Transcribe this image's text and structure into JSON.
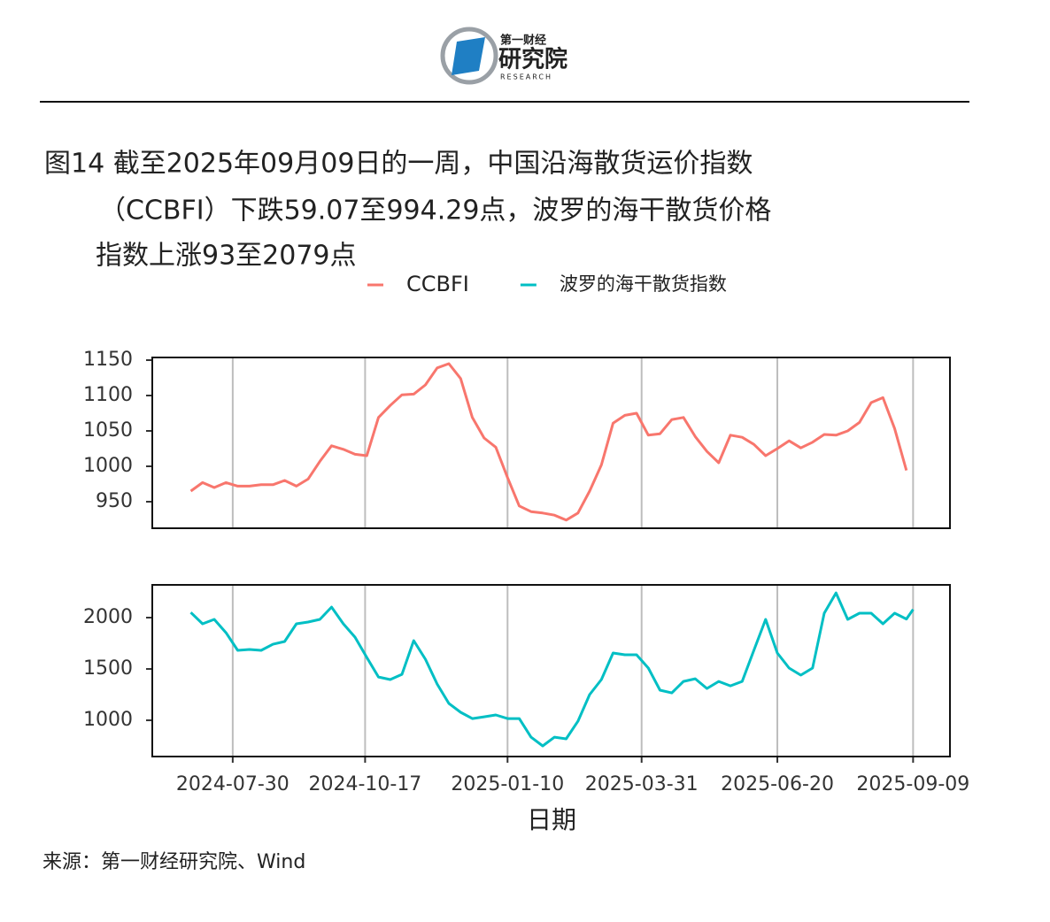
{
  "header": {
    "logo_top": "第一财经",
    "logo_main": "研究院",
    "logo_sub": "RESEARCH"
  },
  "title_lines": [
    "图14  截至2025年09月09日的一周，中国沿海散货运价指数",
    "（CCBFI）下跌59.07至994.29点，波罗的海干散货价格",
    "指数上涨93至2079点"
  ],
  "x_label": "日期",
  "source": "来源：第一财经研究院、Wind",
  "chart_data": [
    {
      "type": "line",
      "x": [
        "2024-07-05",
        "2024-07-12",
        "2024-07-19",
        "2024-07-26",
        "2024-08-02",
        "2024-08-09",
        "2024-08-16",
        "2024-08-23",
        "2024-08-30",
        "2024-09-06",
        "2024-09-13",
        "2024-09-20",
        "2024-09-27",
        "2024-10-04",
        "2024-10-11",
        "2024-10-18",
        "2024-10-25",
        "2024-11-01",
        "2024-11-08",
        "2024-11-15",
        "2024-11-22",
        "2024-11-29",
        "2024-12-06",
        "2024-12-13",
        "2024-12-20",
        "2024-12-27",
        "2025-01-03",
        "2025-01-10",
        "2025-01-17",
        "2025-01-24",
        "2025-01-31",
        "2025-02-07",
        "2025-02-14",
        "2025-02-21",
        "2025-02-28",
        "2025-03-07",
        "2025-03-14",
        "2025-03-21",
        "2025-03-28",
        "2025-04-04",
        "2025-04-11",
        "2025-04-18",
        "2025-04-25",
        "2025-05-02",
        "2025-05-09",
        "2025-05-16",
        "2025-05-23",
        "2025-05-30",
        "2025-06-06",
        "2025-06-13",
        "2025-06-20",
        "2025-06-27",
        "2025-07-04",
        "2025-07-11",
        "2025-07-18",
        "2025-07-25",
        "2025-08-01",
        "2025-08-08",
        "2025-08-15",
        "2025-08-22",
        "2025-08-29",
        "2025-09-05"
      ],
      "series": [
        {
          "name": "CCBFI",
          "color": "#F8766D",
          "values": [
            965,
            977,
            970,
            977,
            972,
            972,
            974,
            974,
            980,
            972,
            982,
            1007,
            1029,
            1024,
            1017,
            1015,
            1069,
            1086,
            1101,
            1102,
            1115,
            1139,
            1145,
            1124,
            1069,
            1040,
            1027,
            984,
            944,
            936,
            934,
            931,
            924,
            934,
            965,
            1002,
            1061,
            1072,
            1075,
            1044,
            1046,
            1066,
            1069,
            1042,
            1021,
            1005,
            1044,
            1041,
            1031,
            1015,
            1025,
            1036,
            1026,
            1034,
            1045,
            1044,
            1050,
            1062,
            1090,
            1097,
            1053.36,
            994.29
          ]
        }
      ],
      "xlim": [
        "2024-06-12",
        "2025-10-01"
      ],
      "xticks": [
        "2024-07-30",
        "2024-10-17",
        "2025-01-10",
        "2025-03-31",
        "2025-06-20",
        "2025-09-09"
      ],
      "ylim": [
        912.5,
        1153.75
      ],
      "yticks": [
        950,
        1000,
        1050,
        1100,
        1150
      ],
      "grid": "x"
    },
    {
      "type": "line",
      "x": [
        "2024-07-05",
        "2024-07-12",
        "2024-07-19",
        "2024-07-26",
        "2024-08-02",
        "2024-08-09",
        "2024-08-16",
        "2024-08-23",
        "2024-08-30",
        "2024-09-06",
        "2024-09-13",
        "2024-09-20",
        "2024-09-27",
        "2024-10-04",
        "2024-10-11",
        "2024-10-18",
        "2024-10-25",
        "2024-11-01",
        "2024-11-08",
        "2024-11-15",
        "2024-11-22",
        "2024-11-29",
        "2024-12-06",
        "2024-12-13",
        "2024-12-20",
        "2024-12-27",
        "2025-01-03",
        "2025-01-10",
        "2025-01-17",
        "2025-01-24",
        "2025-01-31",
        "2025-02-07",
        "2025-02-14",
        "2025-02-21",
        "2025-02-28",
        "2025-03-07",
        "2025-03-14",
        "2025-03-21",
        "2025-03-28",
        "2025-04-04",
        "2025-04-11",
        "2025-04-18",
        "2025-04-25",
        "2025-05-02",
        "2025-05-09",
        "2025-05-16",
        "2025-05-23",
        "2025-05-30",
        "2025-06-06",
        "2025-06-13",
        "2025-06-20",
        "2025-06-27",
        "2025-07-04",
        "2025-07-11",
        "2025-07-18",
        "2025-07-25",
        "2025-08-01",
        "2025-08-08",
        "2025-08-15",
        "2025-08-22",
        "2025-08-29",
        "2025-09-05",
        "2025-09-09"
      ],
      "series": [
        {
          "name": "波罗的海干散货指数",
          "color": "#00BFC4",
          "values": [
            2050,
            1940,
            1983,
            1853,
            1681,
            1690,
            1681,
            1741,
            1767,
            1940,
            1957,
            1983,
            2103,
            1940,
            1810,
            1612,
            1422,
            1397,
            1448,
            1776,
            1595,
            1353,
            1164,
            1078,
            1017,
            1034,
            1052,
            1017,
            1017,
            836,
            750,
            836,
            819,
            991,
            1250,
            1397,
            1655,
            1638,
            1638,
            1509,
            1293,
            1267,
            1379,
            1405,
            1310,
            1379,
            1336,
            1379,
            1681,
            1983,
            1655,
            1509,
            1440,
            1509,
            2043,
            2241,
            1983,
            2043,
            2043,
            1940,
            2043,
            1986,
            2079
          ]
        }
      ],
      "xlim": [
        "2024-06-12",
        "2025-10-01"
      ],
      "xticks": [
        "2024-07-30",
        "2024-10-17",
        "2025-01-10",
        "2025-03-31",
        "2025-06-20",
        "2025-09-09"
      ],
      "ylim": [
        647,
        2319
      ],
      "yticks": [
        1000,
        1500,
        2000
      ],
      "grid": "x"
    }
  ]
}
